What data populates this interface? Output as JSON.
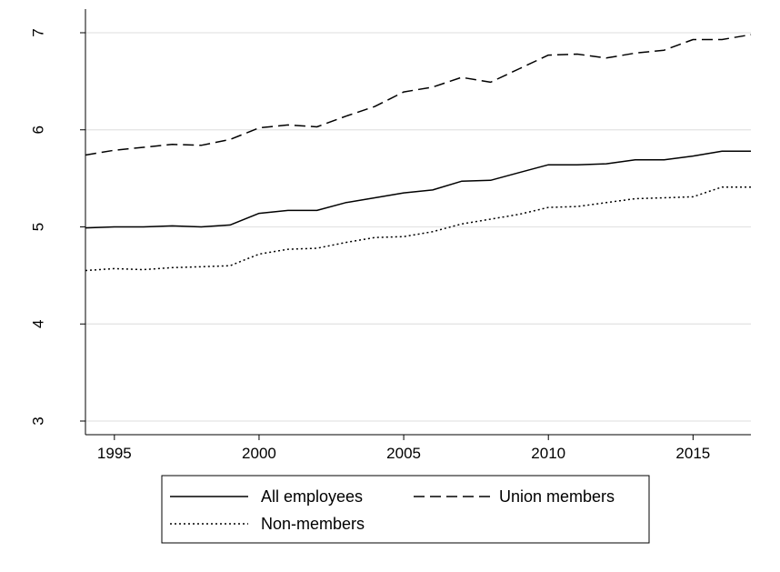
{
  "chart_data": {
    "type": "line",
    "title": "",
    "xlabel": "",
    "ylabel": "",
    "x": [
      1994,
      1995,
      1996,
      1997,
      1998,
      1999,
      2000,
      2001,
      2002,
      2003,
      2004,
      2005,
      2006,
      2007,
      2008,
      2009,
      2010,
      2011,
      2012,
      2013,
      2014,
      2015,
      2016,
      2017
    ],
    "xlim": [
      1994,
      2017
    ],
    "ylim": [
      3,
      7
    ],
    "xticks": [
      1995,
      2000,
      2005,
      2010,
      2015
    ],
    "yticks": [
      3,
      4,
      5,
      6,
      7
    ],
    "grid": "horizontal",
    "legend_position": "bottom",
    "series": [
      {
        "name": "All employees",
        "style": "solid",
        "values": [
          4.99,
          5.0,
          5.0,
          5.01,
          5.0,
          5.02,
          5.14,
          5.17,
          5.17,
          5.25,
          5.3,
          5.35,
          5.38,
          5.47,
          5.48,
          5.56,
          5.64,
          5.64,
          5.65,
          5.69,
          5.69,
          5.73,
          5.78,
          5.78
        ]
      },
      {
        "name": "Union members",
        "style": "dashed",
        "values": [
          5.74,
          5.79,
          5.82,
          5.85,
          5.84,
          5.9,
          6.02,
          6.05,
          6.03,
          6.14,
          6.24,
          6.39,
          6.44,
          6.54,
          6.49,
          6.63,
          6.77,
          6.78,
          6.74,
          6.79,
          6.82,
          6.93,
          6.93,
          6.98
        ]
      },
      {
        "name": "Non-members",
        "style": "dotted",
        "values": [
          4.55,
          4.57,
          4.56,
          4.58,
          4.59,
          4.6,
          4.72,
          4.77,
          4.78,
          4.84,
          4.89,
          4.9,
          4.95,
          5.03,
          5.08,
          5.13,
          5.2,
          5.21,
          5.25,
          5.29,
          5.3,
          5.31,
          5.41,
          5.41
        ]
      }
    ]
  },
  "colors": {
    "background": "#ffffff",
    "line": "#000000",
    "grid": "#e3e3e3",
    "frame": "#000000"
  }
}
